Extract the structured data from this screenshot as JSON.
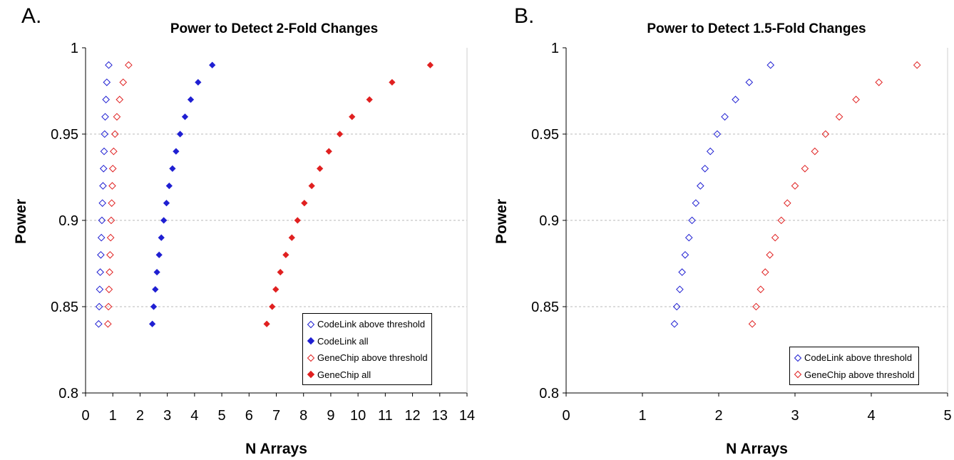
{
  "panels": [
    {
      "letter": "A."
    },
    {
      "letter": "B."
    }
  ],
  "colors": {
    "blue": "#1f1fd2",
    "red": "#e02020",
    "grid": "#b8b8b8"
  },
  "chart_data": [
    {
      "type": "scatter",
      "title": "Power to Detect 2-Fold Changes",
      "xlabel": "N Arrays",
      "ylabel": "Power",
      "xlim": [
        0,
        14
      ],
      "ylim": [
        0.8,
        1
      ],
      "xticks": [
        "0",
        "1",
        "2",
        "3",
        "4",
        "5",
        "6",
        "7",
        "8",
        "9",
        "10",
        "11",
        "12",
        "13",
        "14"
      ],
      "yticks": [
        "0.8",
        "0.85",
        "0.9",
        "0.95",
        "1"
      ],
      "grid": "horizontal dashed",
      "legend_position": "bottom-right",
      "series": [
        {
          "name": "CodeLink above threshold",
          "marker": "open-diamond",
          "color": "#1f1fd2",
          "x": [
            0.48,
            0.5,
            0.52,
            0.54,
            0.56,
            0.58,
            0.6,
            0.62,
            0.64,
            0.66,
            0.68,
            0.7,
            0.72,
            0.75,
            0.78,
            0.85
          ],
          "y": [
            0.84,
            0.85,
            0.86,
            0.87,
            0.88,
            0.89,
            0.9,
            0.91,
            0.92,
            0.93,
            0.94,
            0.95,
            0.96,
            0.97,
            0.98,
            0.99
          ]
        },
        {
          "name": "CodeLink all",
          "marker": "filled-diamond",
          "color": "#1f1fd2",
          "x": [
            2.45,
            2.5,
            2.56,
            2.62,
            2.7,
            2.78,
            2.87,
            2.97,
            3.07,
            3.19,
            3.32,
            3.47,
            3.65,
            3.86,
            4.13,
            4.65
          ],
          "y": [
            0.84,
            0.85,
            0.86,
            0.87,
            0.88,
            0.89,
            0.9,
            0.91,
            0.92,
            0.93,
            0.94,
            0.95,
            0.96,
            0.97,
            0.98,
            0.99
          ]
        },
        {
          "name": "GeneChip above threshold",
          "marker": "open-diamond",
          "color": "#e02020",
          "x": [
            0.82,
            0.84,
            0.86,
            0.88,
            0.9,
            0.92,
            0.94,
            0.96,
            0.98,
            1.0,
            1.03,
            1.08,
            1.15,
            1.25,
            1.38,
            1.58
          ],
          "y": [
            0.84,
            0.85,
            0.86,
            0.87,
            0.88,
            0.89,
            0.9,
            0.91,
            0.92,
            0.93,
            0.94,
            0.95,
            0.96,
            0.97,
            0.98,
            0.99
          ]
        },
        {
          "name": "GeneChip all",
          "marker": "filled-diamond",
          "color": "#e02020",
          "x": [
            6.65,
            6.85,
            6.98,
            7.15,
            7.35,
            7.57,
            7.78,
            8.03,
            8.3,
            8.6,
            8.93,
            9.33,
            9.78,
            10.42,
            11.25,
            12.65
          ],
          "y": [
            0.84,
            0.85,
            0.86,
            0.87,
            0.88,
            0.89,
            0.9,
            0.91,
            0.92,
            0.93,
            0.94,
            0.95,
            0.96,
            0.97,
            0.98,
            0.99
          ]
        }
      ]
    },
    {
      "type": "scatter",
      "title": "Power to Detect 1.5-Fold Changes",
      "xlabel": "N Arrays",
      "ylabel": "Power",
      "xlim": [
        0,
        5
      ],
      "ylim": [
        0.8,
        1
      ],
      "xticks": [
        "0",
        "1",
        "2",
        "3",
        "4",
        "5"
      ],
      "yticks": [
        "0.8",
        "0.85",
        "0.9",
        "0.95",
        "1"
      ],
      "grid": "horizontal dashed",
      "legend_position": "bottom-right",
      "series": [
        {
          "name": "CodeLink above threshold",
          "marker": "open-diamond",
          "color": "#1f1fd2",
          "x": [
            1.42,
            1.45,
            1.49,
            1.52,
            1.56,
            1.61,
            1.65,
            1.7,
            1.76,
            1.82,
            1.89,
            1.98,
            2.08,
            2.22,
            2.4,
            2.68
          ],
          "y": [
            0.84,
            0.85,
            0.86,
            0.87,
            0.88,
            0.89,
            0.9,
            0.91,
            0.92,
            0.93,
            0.94,
            0.95,
            0.96,
            0.97,
            0.98,
            0.99
          ]
        },
        {
          "name": "GeneChip above threshold",
          "marker": "open-diamond",
          "color": "#e02020",
          "x": [
            2.44,
            2.49,
            2.55,
            2.61,
            2.67,
            2.74,
            2.82,
            2.9,
            3.0,
            3.13,
            3.26,
            3.4,
            3.58,
            3.8,
            4.1,
            4.6
          ],
          "y": [
            0.84,
            0.85,
            0.86,
            0.87,
            0.88,
            0.89,
            0.9,
            0.91,
            0.92,
            0.93,
            0.94,
            0.95,
            0.96,
            0.97,
            0.98,
            0.99
          ]
        }
      ]
    }
  ]
}
